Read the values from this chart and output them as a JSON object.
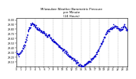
{
  "title": "Milwaukee Weather Barometric Pressure\nper Minute\n(24 Hours)",
  "dot_color": "#0000cc",
  "background_color": "#ffffff",
  "grid_color": "#aaaaaa",
  "ylim": [
    29.0,
    30.05
  ],
  "xlim": [
    0,
    1440
  ],
  "ytick_values": [
    29.1,
    29.2,
    29.3,
    29.4,
    29.5,
    29.6,
    29.7,
    29.8,
    29.9,
    30.0
  ],
  "xtick_values": [
    0,
    60,
    120,
    180,
    240,
    300,
    360,
    420,
    480,
    540,
    600,
    660,
    720,
    780,
    840,
    900,
    960,
    1020,
    1080,
    1140,
    1200,
    1260,
    1320,
    1380,
    1440
  ],
  "xtick_labels": [
    "0",
    "1",
    "2",
    "3",
    "4",
    "5",
    "6",
    "7",
    "8",
    "9",
    "10",
    "11",
    "12",
    "13",
    "14",
    "15",
    "16",
    "17",
    "18",
    "19",
    "20",
    "21",
    "22",
    "23",
    "24"
  ],
  "vgrid_positions": [
    120,
    240,
    360,
    480,
    600,
    720,
    840,
    960,
    1080,
    1200,
    1320
  ],
  "markersize": 1.2,
  "hour_vals": [
    [
      0,
      29.3
    ],
    [
      30,
      29.25
    ],
    [
      60,
      29.32
    ],
    [
      90,
      29.4
    ],
    [
      120,
      29.55
    ],
    [
      150,
      29.75
    ],
    [
      180,
      29.88
    ],
    [
      210,
      29.92
    ],
    [
      240,
      29.88
    ],
    [
      270,
      29.82
    ],
    [
      300,
      29.78
    ],
    [
      330,
      29.75
    ],
    [
      360,
      29.72
    ],
    [
      390,
      29.65
    ],
    [
      420,
      29.68
    ],
    [
      450,
      29.6
    ],
    [
      480,
      29.55
    ],
    [
      510,
      29.5
    ],
    [
      540,
      29.48
    ],
    [
      570,
      29.42
    ],
    [
      600,
      29.38
    ],
    [
      630,
      29.32
    ],
    [
      660,
      29.28
    ],
    [
      690,
      29.22
    ],
    [
      720,
      29.18
    ],
    [
      750,
      29.15
    ],
    [
      780,
      29.1
    ],
    [
      810,
      29.05
    ],
    [
      840,
      29.02
    ],
    [
      870,
      29.0
    ],
    [
      900,
      29.05
    ],
    [
      930,
      29.08
    ],
    [
      960,
      29.12
    ],
    [
      990,
      29.18
    ],
    [
      1020,
      29.22
    ],
    [
      1050,
      29.3
    ],
    [
      1080,
      29.4
    ],
    [
      1110,
      29.52
    ],
    [
      1140,
      29.62
    ],
    [
      1170,
      29.72
    ],
    [
      1200,
      29.78
    ],
    [
      1230,
      29.82
    ],
    [
      1260,
      29.85
    ],
    [
      1290,
      29.88
    ],
    [
      1320,
      29.82
    ],
    [
      1350,
      29.8
    ],
    [
      1380,
      29.82
    ],
    [
      1410,
      29.88
    ],
    [
      1440,
      29.78
    ]
  ]
}
